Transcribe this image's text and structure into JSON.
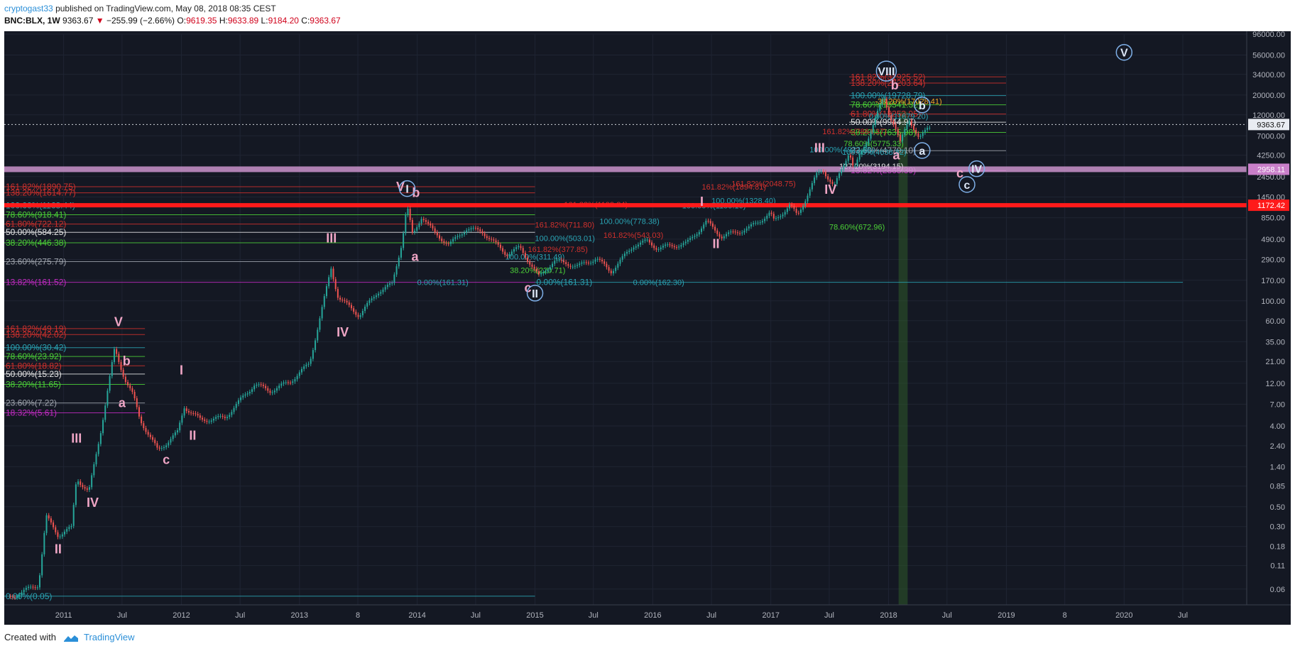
{
  "header": {
    "author": "cryptogast33",
    "published_text": "published on TradingView.com, May 08, 2018 08:35 CEST",
    "symbol": "BNC:BLX, 1W",
    "last": "9363.67",
    "change": "−255.99 (−2.66%)",
    "o_label": "O:",
    "o_val": "9619.35",
    "h_label": "H:",
    "h_val": "9633.89",
    "l_label": "L:",
    "l_val": "9184.20",
    "c_label": "C:",
    "c_val": "9363.67"
  },
  "footer": {
    "created": "Created with",
    "brand": "TradingView"
  },
  "colors": {
    "background": "#141823",
    "up": "#26a69a",
    "down": "#ef5350",
    "wave_label": "#f0a6c6",
    "circle": "#7fb0e8",
    "axis_text": "#b2b5be"
  },
  "chart_data": {
    "type": "candlestick",
    "scale": "log",
    "ylim": [
      0.04,
      96000
    ],
    "xlim": [
      "2010-07-01",
      "2021-01-15"
    ],
    "y_ticks": [
      96000,
      56000,
      34000,
      20000,
      12000,
      7000,
      4250,
      2450,
      1450,
      850,
      490,
      290,
      170,
      100,
      60,
      35,
      21,
      12,
      7,
      4,
      2.4,
      1.4,
      0.85,
      0.5,
      0.3,
      0.18,
      0.11,
      0.06
    ],
    "y_tick_labels": [
      "96000.00",
      "56000.00",
      "34000.00",
      "20000.00",
      "12000.00",
      "7000.00",
      "4250.00",
      "2450.00",
      "1450.00",
      "850.00",
      "490.00",
      "290.00",
      "170.00",
      "100.00",
      "60.00",
      "35.00",
      "21.00",
      "12.00",
      "7.00",
      "4.00",
      "2.40",
      "1.40",
      "0.85",
      "0.50",
      "0.30",
      "0.18",
      "0.11",
      "0.06"
    ],
    "x_ticks": [
      {
        "label": "2011",
        "date": "2011-01-01"
      },
      {
        "label": "Jul",
        "date": "2011-07-01"
      },
      {
        "label": "2012",
        "date": "2012-01-01"
      },
      {
        "label": "Jul",
        "date": "2012-07-01"
      },
      {
        "label": "2013",
        "date": "2013-01-01"
      },
      {
        "label": "8",
        "date": "2013-07-01"
      },
      {
        "label": "2014",
        "date": "2014-01-01"
      },
      {
        "label": "Jul",
        "date": "2014-07-01"
      },
      {
        "label": "2015",
        "date": "2015-01-01"
      },
      {
        "label": "Jul",
        "date": "2015-07-01"
      },
      {
        "label": "2016",
        "date": "2016-01-01"
      },
      {
        "label": "Jul",
        "date": "2016-07-01"
      },
      {
        "label": "2017",
        "date": "2017-01-01"
      },
      {
        "label": "Jul",
        "date": "2017-07-01"
      },
      {
        "label": "2018",
        "date": "2018-01-01"
      },
      {
        "label": "Jul",
        "date": "2018-07-01"
      },
      {
        "label": "2019",
        "date": "2019-01-01"
      },
      {
        "label": "8",
        "date": "2019-07-01"
      },
      {
        "label": "2020",
        "date": "2020-01-01"
      },
      {
        "label": "Jul",
        "date": "2020-07-01"
      }
    ],
    "price_path": [
      [
        "2010-07-20",
        0.05
      ],
      [
        "2010-10-15",
        0.07
      ],
      [
        "2010-11-08",
        0.4
      ],
      [
        "2010-12-15",
        0.25
      ],
      [
        "2011-01-25",
        0.3
      ],
      [
        "2011-02-10",
        1.1
      ],
      [
        "2011-03-20",
        0.75
      ],
      [
        "2011-04-25",
        3.5
      ],
      [
        "2011-06-08",
        30
      ],
      [
        "2011-07-10",
        14
      ],
      [
        "2011-08-05",
        9
      ],
      [
        "2011-08-25",
        5
      ],
      [
        "2011-10-20",
        2.2
      ],
      [
        "2011-12-20",
        3.5
      ],
      [
        "2012-01-10",
        6.8
      ],
      [
        "2012-03-01",
        4.8
      ],
      [
        "2012-05-15",
        5.1
      ],
      [
        "2012-08-15",
        12
      ],
      [
        "2012-10-01",
        10
      ],
      [
        "2012-12-01",
        12.5
      ],
      [
        "2013-02-01",
        20
      ],
      [
        "2013-04-09",
        230
      ],
      [
        "2013-05-01",
        110
      ],
      [
        "2013-07-05",
        68
      ],
      [
        "2013-09-01",
        125
      ],
      [
        "2013-10-15",
        150
      ],
      [
        "2013-11-15",
        450
      ],
      [
        "2013-11-30",
        1150
      ],
      [
        "2013-12-18",
        520
      ],
      [
        "2014-01-15",
        870
      ],
      [
        "2014-02-25",
        550
      ],
      [
        "2014-04-10",
        410
      ],
      [
        "2014-06-01",
        620
      ],
      [
        "2014-07-20",
        580
      ],
      [
        "2014-10-05",
        320
      ],
      [
        "2014-11-15",
        380
      ],
      [
        "2015-01-14",
        178
      ],
      [
        "2015-03-01",
        270
      ],
      [
        "2015-05-15",
        235
      ],
      [
        "2015-07-10",
        290
      ],
      [
        "2015-08-24",
        205
      ],
      [
        "2015-11-04",
        410
      ],
      [
        "2015-12-15",
        450
      ],
      [
        "2016-01-15",
        380
      ],
      [
        "2016-04-15",
        430
      ],
      [
        "2016-06-16",
        760
      ],
      [
        "2016-08-02",
        520
      ],
      [
        "2016-10-25",
        650
      ],
      [
        "2016-12-30",
        960
      ],
      [
        "2017-01-11",
        780
      ],
      [
        "2017-03-01",
        1200
      ],
      [
        "2017-03-24",
        900
      ],
      [
        "2017-05-25",
        2700
      ],
      [
        "2017-06-12",
        3000
      ],
      [
        "2017-07-16",
        1900
      ],
      [
        "2017-09-01",
        4900
      ],
      [
        "2017-09-15",
        3000
      ],
      [
        "2017-11-01",
        7300
      ],
      [
        "2017-12-17",
        19700
      ],
      [
        "2018-01-01",
        13400
      ],
      [
        "2018-01-17",
        9800
      ],
      [
        "2018-02-06",
        6000
      ],
      [
        "2018-03-05",
        11600
      ],
      [
        "2018-04-06",
        6500
      ],
      [
        "2018-05-06",
        9600
      ],
      [
        "2018-05-08",
        9363.67
      ]
    ],
    "horizontal_lines": [
      {
        "label": "161.82%(31925.52)",
        "value": 31925,
        "x0": "2017-09-01",
        "x1": "2018-12-31",
        "color": "#d0312d"
      },
      {
        "label": "138.20%(27203.64)",
        "value": 27203,
        "x0": "2017-09-01",
        "x1": "2018-12-31",
        "color": "#d0312d"
      },
      {
        "label": "100.00%(19728.79)",
        "value": 19728,
        "x0": "2017-09-01",
        "x1": "2018-12-31",
        "color": "#2aa4b4"
      },
      {
        "label": "78.60%(15541.32)",
        "value": 15541,
        "x0": "2017-09-01",
        "x1": "2018-12-31",
        "color": "#4cd137"
      },
      {
        "label": "61.80%(12253.95)",
        "value": 12253,
        "x0": "2017-09-01",
        "x1": "2018-12-31",
        "color": "#d0312d"
      },
      {
        "label": "50.00%(9944.97)",
        "value": 9944,
        "x0": "2017-09-01",
        "x1": "2018-12-31",
        "color": "#e6e6e6"
      },
      {
        "label": "38.20%(7635.98)",
        "value": 7635,
        "x0": "2017-09-01",
        "x1": "2018-12-31",
        "color": "#4cd137"
      },
      {
        "label": "23.60%(4779.10)",
        "value": 4779,
        "x0": "2017-09-01",
        "x1": "2018-12-31",
        "color": "#9fa4ad"
      },
      {
        "label": "13.82%(2865.39)",
        "value": 2865,
        "x0": "2017-09-01",
        "x1": "2018-12-31",
        "color": "#c22bc2"
      },
      {
        "label": "161.82%(1890.75)",
        "value": 1890,
        "x0": "2010-07-01",
        "x1": "2015-01-01",
        "color": "#d0312d"
      },
      {
        "label": "138.20%(1614.77)",
        "value": 1614,
        "x0": "2010-07-01",
        "x1": "2015-01-01",
        "color": "#d0312d"
      },
      {
        "label": "100.00%(1168.44)",
        "value": 1168,
        "x0": "2010-07-01",
        "x1": "2015-01-01",
        "color": "#2aa4b4"
      },
      {
        "label": "78.60%(918.41)",
        "value": 918,
        "x0": "2010-07-01",
        "x1": "2015-01-01",
        "color": "#4cd137"
      },
      {
        "label": "61.80%(722.12)",
        "value": 722,
        "x0": "2010-07-01",
        "x1": "2015-01-01",
        "color": "#d0312d"
      },
      {
        "label": "50.00%(584.25)",
        "value": 584,
        "x0": "2010-07-01",
        "x1": "2015-01-01",
        "color": "#e6e6e6"
      },
      {
        "label": "38.20%(446.38)",
        "value": 446,
        "x0": "2010-07-01",
        "x1": "2015-01-01",
        "color": "#4cd137"
      },
      {
        "label": "23.60%(275.79)",
        "value": 275,
        "x0": "2010-07-01",
        "x1": "2015-01-01",
        "color": "#9fa4ad"
      },
      {
        "label": "13.82%(161.52)",
        "value": 161.52,
        "x0": "2010-07-01",
        "x1": "2015-01-01",
        "color": "#c22bc2"
      },
      {
        "label": "161.82%(49.19)",
        "value": 49,
        "x0": "2010-07-01",
        "x1": "2011-09-10",
        "color": "#d0312d"
      },
      {
        "label": "138.20%(42.02)",
        "value": 42,
        "x0": "2010-07-01",
        "x1": "2011-09-10",
        "color": "#d0312d"
      },
      {
        "label": "100.00%(30.42)",
        "value": 30,
        "x0": "2010-07-01",
        "x1": "2011-09-10",
        "color": "#2aa4b4"
      },
      {
        "label": "78.60%(23.92)",
        "value": 23.9,
        "x0": "2010-07-01",
        "x1": "2011-09-10",
        "color": "#4cd137"
      },
      {
        "label": "61.80%(18.82)",
        "value": 18.8,
        "x0": "2010-07-01",
        "x1": "2011-09-10",
        "color": "#d0312d"
      },
      {
        "label": "50.00%(15.23)",
        "value": 15.2,
        "x0": "2010-07-01",
        "x1": "2011-09-10",
        "color": "#e6e6e6"
      },
      {
        "label": "38.20%(11.65)",
        "value": 11.65,
        "x0": "2010-07-01",
        "x1": "2011-09-10",
        "color": "#4cd137"
      },
      {
        "label": "23.60%(7.22)",
        "value": 7.22,
        "x0": "2010-07-01",
        "x1": "2011-09-10",
        "color": "#9fa4ad"
      },
      {
        "label": "18.32%(5.61)",
        "value": 5.61,
        "x0": "2010-07-01",
        "x1": "2011-09-10",
        "color": "#c22bc2"
      },
      {
        "label": "0.00%(0.05)",
        "value": 0.05,
        "x0": "2010-07-01",
        "x1": "2015-01-01",
        "color": "#2aa4b4"
      },
      {
        "label": "0.00%(161.31)",
        "value": 161.3,
        "x0": "2015-01-01",
        "x1": "2020-07-01",
        "color": "#2aa4b4"
      }
    ],
    "price_levels": [
      {
        "label": "9363.67",
        "value": 9363.67,
        "kind": "last"
      },
      {
        "label": "2958.11",
        "value": 2958.11,
        "kind": "zone"
      },
      {
        "label": "1172.42",
        "value": 1172.42,
        "kind": "support"
      }
    ],
    "extra_labels": [
      {
        "text": "-38.20%(17028.41)",
        "date": "2017-11-20",
        "value": 17000,
        "color": "#f5a623"
      },
      {
        "text": "0.00%(11679.20)",
        "date": "2017-11-01",
        "value": 11679,
        "color": "#2aa4b4"
      },
      {
        "text": "161.82%(7864.37)",
        "date": "2017-06-10",
        "value": 7860,
        "color": "#d0312d"
      },
      {
        "text": "100.00%(4922.28)",
        "date": "2017-05-01",
        "value": 4922,
        "color": "#2aa4b4"
      },
      {
        "text": "78.60%(5775.33)",
        "date": "2017-08-15",
        "value": 5775,
        "color": "#4cd137"
      },
      {
        "text": "100.00%(4638.82)",
        "date": "2017-08-10",
        "value": 4638,
        "color": "#2aa4b4"
      },
      {
        "text": "127.20%(3194.15)",
        "date": "2017-08-01",
        "value": 3194,
        "color": "#e6e6e6"
      },
      {
        "text": "161.82%(2048.75)",
        "date": "2016-09-01",
        "value": 2048,
        "color": "#d0312d"
      },
      {
        "text": "161.82%(1894.81)",
        "date": "2016-06-01",
        "value": 1890,
        "color": "#d0312d"
      },
      {
        "text": "100.00%(1328.40)",
        "date": "2016-07-01",
        "value": 1328,
        "color": "#2aa4b4"
      },
      {
        "text": "100.00%(1159.16)",
        "date": "2016-04-01",
        "value": 1159,
        "color": "#2aa4b4"
      },
      {
        "text": "161.82%(1199.84)",
        "date": "2015-04-01",
        "value": 1199,
        "color": "#d0312d"
      },
      {
        "text": "100.00%(778.38)",
        "date": "2015-07-20",
        "value": 778,
        "color": "#2aa4b4"
      },
      {
        "text": "161.82%(711.80)",
        "date": "2015-01-01",
        "value": 711,
        "color": "#d0312d"
      },
      {
        "text": "100.00%(503.01)",
        "date": "2015-01-01",
        "value": 503,
        "color": "#2aa4b4"
      },
      {
        "text": "161.82%(543.03)",
        "date": "2015-08-01",
        "value": 543,
        "color": "#d0312d"
      },
      {
        "text": "161.82%(377.85)",
        "date": "2014-12-10",
        "value": 377,
        "color": "#d0312d"
      },
      {
        "text": "100.00%(311.49)",
        "date": "2014-10-01",
        "value": 311,
        "color": "#2aa4b4"
      },
      {
        "text": "38.20%(220.71)",
        "date": "2014-10-15",
        "value": 220,
        "color": "#4cd137"
      },
      {
        "text": "0.00%(161.31)",
        "date": "2014-01-01",
        "value": 161.31,
        "color": "#2aa4b4"
      },
      {
        "text": "0.00%(162.30)",
        "date": "2015-11-01",
        "value": 162.3,
        "color": "#2aa4b4"
      },
      {
        "text": "78.60%(672.96)",
        "date": "2017-07-01",
        "value": 672.96,
        "color": "#4cd137"
      }
    ],
    "wave_labels": [
      {
        "text": "II",
        "date": "2010-12-15",
        "value": 0.15
      },
      {
        "text": "III",
        "date": "2011-02-10",
        "value": 2.6
      },
      {
        "text": "IV",
        "date": "2011-04-01",
        "value": 0.5
      },
      {
        "text": "V",
        "date": "2011-06-20",
        "value": 52
      },
      {
        "text": "b",
        "date": "2011-07-15",
        "value": 19
      },
      {
        "text": "a",
        "date": "2011-07-01",
        "value": 6.5
      },
      {
        "text": "c",
        "date": "2011-11-15",
        "value": 1.5
      },
      {
        "text": "I",
        "date": "2012-01-01",
        "value": 15
      },
      {
        "text": "II",
        "date": "2012-02-05",
        "value": 2.8
      },
      {
        "text": "III",
        "date": "2013-04-10",
        "value": 450
      },
      {
        "text": "IV",
        "date": "2013-05-15",
        "value": 40
      },
      {
        "text": "V",
        "date": "2013-11-10",
        "value": 1700
      },
      {
        "text": "b",
        "date": "2013-12-28",
        "value": 1450
      },
      {
        "text": "a",
        "date": "2013-12-25",
        "value": 280
      },
      {
        "text": "c",
        "date": "2014-12-10",
        "value": 125
      },
      {
        "text": "I",
        "date": "2016-06-01",
        "value": 1150
      },
      {
        "text": "II",
        "date": "2016-07-15",
        "value": 390
      },
      {
        "text": "III",
        "date": "2017-06-01",
        "value": 4600
      },
      {
        "text": "IV",
        "date": "2017-07-05",
        "value": 1580
      },
      {
        "text": "b",
        "date": "2018-01-20",
        "value": 23000
      },
      {
        "text": "a",
        "date": "2018-01-25",
        "value": 3800
      },
      {
        "text": "c",
        "date": "2018-08-10",
        "value": 2400
      }
    ],
    "wave_circles": [
      {
        "text": "I",
        "date": "2013-12-01",
        "value": 1800
      },
      {
        "text": "II",
        "date": "2015-01-01",
        "value": 122
      },
      {
        "text": "VIII",
        "date": "2017-12-25",
        "value": 37000
      },
      {
        "text": "b",
        "date": "2018-04-15",
        "value": 15500
      },
      {
        "text": "a",
        "date": "2018-04-15",
        "value": 4800
      },
      {
        "text": "c",
        "date": "2018-09-01",
        "value": 2000
      },
      {
        "text": "IV",
        "date": "2018-10-01",
        "value": 3000
      },
      {
        "text": "V",
        "date": "2020-01-01",
        "value": 60000
      }
    ]
  }
}
